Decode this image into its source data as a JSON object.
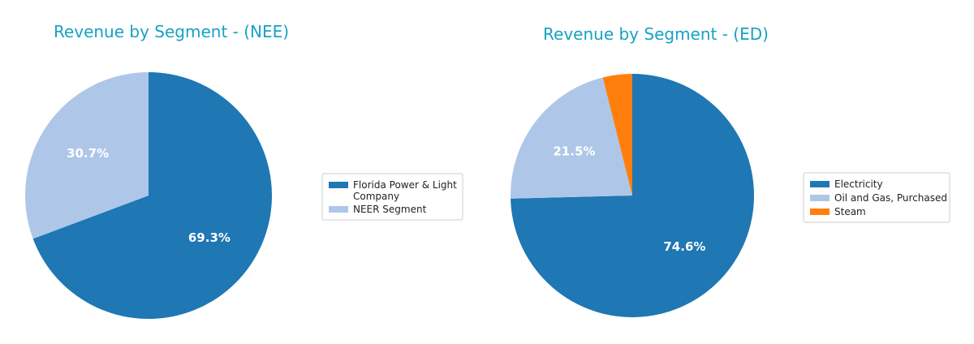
{
  "chart_data": [
    {
      "type": "pie",
      "title": "Revenue by Segment - (NEE)",
      "categories": [
        "Florida Power & Light Company",
        "NEER Segment"
      ],
      "legend_lines": [
        [
          "Florida Power & Light",
          "Company"
        ],
        [
          "NEER Segment"
        ]
      ],
      "values": [
        69.3,
        30.7
      ],
      "labels": [
        "69.3%",
        "30.7%"
      ],
      "colors": [
        "#1f77b4",
        "#aec7e8"
      ],
      "legend_position": "right"
    },
    {
      "type": "pie",
      "title": "Revenue by Segment - (ED)",
      "categories": [
        "Electricity",
        "Oil and Gas, Purchased",
        "Steam"
      ],
      "legend_lines": [
        [
          "Electricity"
        ],
        [
          "Oil and Gas, Purchased"
        ],
        [
          "Steam"
        ]
      ],
      "values": [
        74.6,
        21.5,
        3.9
      ],
      "labels": [
        "74.6%",
        "21.5%",
        ""
      ],
      "colors": [
        "#1f77b4",
        "#aec7e8",
        "#ff7f0e"
      ],
      "legend_position": "right"
    }
  ]
}
